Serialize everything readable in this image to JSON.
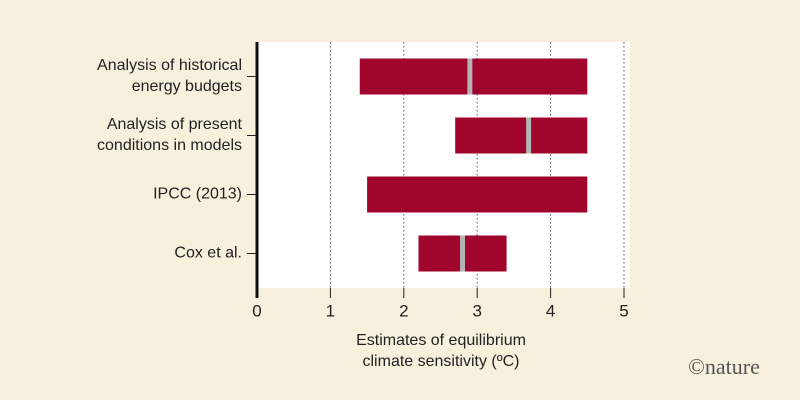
{
  "chart_data": {
    "type": "range-bar",
    "categories": [
      [
        "Analysis of historical",
        "energy budgets"
      ],
      [
        "Analysis of present",
        "conditions in models"
      ],
      [
        "IPCC (2013)"
      ],
      [
        "Cox et al."
      ]
    ],
    "low": [
      1.4,
      2.7,
      1.5,
      2.2
    ],
    "high": [
      4.5,
      4.5,
      4.5,
      3.4
    ],
    "central": [
      2.9,
      3.7,
      null,
      2.8
    ],
    "color": "#a0052d",
    "central_color": "#b4b4b4",
    "xlim": [
      0,
      5
    ],
    "xticks": [
      0,
      1,
      2,
      3,
      4,
      5
    ],
    "grid": true,
    "xlabel": [
      "Estimates of equilibrium",
      "climate sensitivity (ºC)"
    ],
    "credit": "©nature"
  }
}
